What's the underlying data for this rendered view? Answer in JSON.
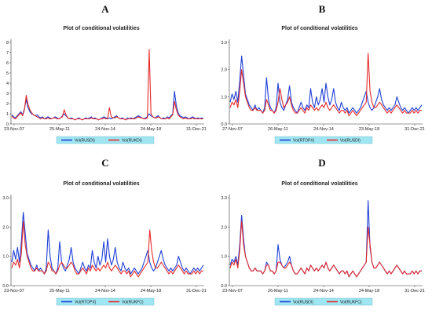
{
  "panels": [
    {
      "letter": "A"
    },
    {
      "letter": "B"
    },
    {
      "letter": "C"
    },
    {
      "letter": "D"
    }
  ],
  "colors": {
    "series1": "#1f3fd6",
    "series2": "#e52b2b",
    "legend_bg": "#9fe6f2"
  },
  "chart_data": [
    {
      "type": "line",
      "title": "Plot of conditional volatilities",
      "x_ticks": [
        "23-Nov-07",
        "25-May-11",
        "24-Nov-14",
        "24-May-18",
        "31-Dec-21"
      ],
      "y_ticks": [
        "0",
        "1",
        "2",
        "3",
        "4",
        "5",
        "6",
        "7",
        "8"
      ],
      "ylim": [
        0,
        8
      ],
      "series": [
        {
          "name": "Vol(RUSDI)",
          "color": "#1f3fd6",
          "values": [
            0.9,
            0.7,
            0.6,
            0.8,
            1.0,
            1.2,
            0.9,
            1.5,
            2.4,
            1.6,
            1.2,
            1.0,
            0.9,
            0.8,
            0.9,
            0.7,
            0.6,
            0.7,
            0.5,
            0.6,
            0.7,
            0.6,
            0.5,
            0.6,
            0.7,
            0.6,
            0.5,
            0.6,
            0.8,
            1.0,
            0.8,
            0.6,
            0.5,
            0.6,
            0.5,
            0.4,
            0.5,
            0.6,
            0.5,
            0.4,
            0.5,
            0.6,
            0.5,
            0.6,
            0.7,
            0.5,
            0.6,
            0.5,
            0.4,
            0.5,
            0.6,
            0.7,
            0.6,
            0.5,
            0.6,
            0.5,
            0.6,
            0.7,
            0.8,
            0.6,
            0.5,
            0.6,
            0.5,
            0.4,
            0.6,
            0.5,
            0.6,
            0.5,
            0.6,
            0.7,
            0.8,
            0.7,
            0.6,
            0.5,
            0.6,
            0.7,
            1.0,
            0.8,
            0.7,
            0.6,
            0.7,
            0.8,
            0.6,
            0.5,
            0.6,
            0.5,
            0.7,
            0.6,
            0.8,
            1.0,
            3.2,
            1.8,
            1.1,
            0.8,
            0.7,
            0.6,
            0.7,
            0.6,
            0.5,
            0.6,
            0.7,
            0.6,
            0.5,
            0.6,
            0.5,
            0.6,
            0.5
          ]
        },
        {
          "name": "Vol(RUKDI)",
          "color": "#e52b2b",
          "values": [
            0.8,
            0.6,
            0.5,
            0.7,
            0.9,
            1.1,
            0.8,
            1.4,
            2.8,
            1.9,
            1.4,
            1.1,
            0.9,
            0.8,
            0.7,
            0.6,
            0.5,
            0.6,
            0.5,
            0.5,
            0.6,
            0.5,
            0.5,
            0.6,
            0.6,
            0.5,
            0.5,
            0.6,
            0.7,
            1.4,
            0.9,
            0.6,
            0.5,
            0.5,
            0.5,
            0.4,
            0.5,
            0.5,
            0.5,
            0.4,
            0.5,
            0.5,
            0.5,
            0.5,
            0.6,
            0.5,
            0.5,
            0.5,
            0.4,
            0.5,
            0.5,
            0.6,
            0.5,
            0.5,
            1.6,
            0.7,
            0.6,
            0.6,
            0.7,
            0.6,
            0.5,
            0.5,
            0.5,
            0.4,
            0.5,
            0.5,
            0.5,
            0.5,
            0.5,
            0.6,
            0.7,
            0.6,
            0.6,
            0.5,
            0.5,
            0.6,
            7.3,
            1.0,
            0.7,
            0.6,
            0.6,
            0.7,
            0.6,
            0.5,
            0.5,
            0.5,
            0.6,
            0.5,
            0.7,
            0.9,
            2.2,
            1.4,
            0.9,
            0.7,
            0.6,
            0.5,
            0.6,
            0.5,
            0.5,
            0.5,
            0.6,
            0.5,
            0.5,
            0.5,
            0.5,
            0.5,
            0.5
          ]
        }
      ]
    },
    {
      "type": "line",
      "title": "Plot of conditional volatilities",
      "x_ticks": [
        "27-Nov-07",
        "26-May-11",
        "24-Nov-14",
        "23-May-18",
        "31-Dec-21"
      ],
      "y_ticks": [
        "0.0",
        "1.0",
        "2.0",
        "3.0"
      ],
      "ylim": [
        0,
        3
      ],
      "series": [
        {
          "name": "Vol(RTOPX)",
          "color": "#1f3fd6",
          "values": [
            0.8,
            1.1,
            0.9,
            1.2,
            0.8,
            1.6,
            2.5,
            1.8,
            1.1,
            0.9,
            0.7,
            0.6,
            0.5,
            0.7,
            0.5,
            0.6,
            0.5,
            0.4,
            0.6,
            1.7,
            0.9,
            0.6,
            0.5,
            0.4,
            0.6,
            1.5,
            0.8,
            0.6,
            0.5,
            0.7,
            0.9,
            1.4,
            0.8,
            0.6,
            0.5,
            0.4,
            0.6,
            0.8,
            0.6,
            0.5,
            0.7,
            0.6,
            1.3,
            0.8,
            0.6,
            1.0,
            0.7,
            0.9,
            1.3,
            0.8,
            1.5,
            1.0,
            0.7,
            0.9,
            1.3,
            0.8,
            0.6,
            0.5,
            0.8,
            0.6,
            0.5,
            0.6,
            0.4,
            0.5,
            0.6,
            0.5,
            0.4,
            0.5,
            0.6,
            0.8,
            1.0,
            1.2,
            0.8,
            0.6,
            0.5,
            0.6,
            0.8,
            1.0,
            1.3,
            0.9,
            0.7,
            0.6,
            0.5,
            0.6,
            0.5,
            0.6,
            0.7,
            1.0,
            0.8,
            0.6,
            0.5,
            0.6,
            0.5,
            0.4,
            0.5,
            0.6,
            0.5,
            0.6,
            0.5,
            0.6,
            0.7
          ]
        },
        {
          "name": "Vol(RUSDI)",
          "color": "#e52b2b",
          "values": [
            0.6,
            0.8,
            0.7,
            0.9,
            0.6,
            1.2,
            2.0,
            1.5,
            1.0,
            0.8,
            0.6,
            0.5,
            0.5,
            0.6,
            0.5,
            0.5,
            0.5,
            0.4,
            0.5,
            0.9,
            0.7,
            0.5,
            0.5,
            0.4,
            0.5,
            0.8,
            1.3,
            0.9,
            0.6,
            0.7,
            0.8,
            1.0,
            0.7,
            0.5,
            0.4,
            0.4,
            0.5,
            0.6,
            0.5,
            0.4,
            0.6,
            0.5,
            0.7,
            0.6,
            0.5,
            0.6,
            0.5,
            0.6,
            0.7,
            0.6,
            0.8,
            0.6,
            0.5,
            0.6,
            0.7,
            0.6,
            0.5,
            0.4,
            0.5,
            0.5,
            0.4,
            0.5,
            0.3,
            0.4,
            0.5,
            0.4,
            0.3,
            0.4,
            0.5,
            0.6,
            0.7,
            0.8,
            2.6,
            1.2,
            0.8,
            0.6,
            0.6,
            0.7,
            0.8,
            0.7,
            0.6,
            0.5,
            0.4,
            0.5,
            0.4,
            0.5,
            0.6,
            0.7,
            0.6,
            0.5,
            0.4,
            0.5,
            0.4,
            0.4,
            0.4,
            0.5,
            0.4,
            0.5,
            0.4,
            0.5,
            0.5
          ]
        }
      ]
    },
    {
      "type": "line",
      "title": "Plot of conditional volatilities",
      "x_ticks": [
        "23-Nov-07",
        "25-May-11",
        "24-Nov-14",
        "24-May-18",
        "31-Dec-21"
      ],
      "y_ticks": [
        "0.0",
        "1.0",
        "2.0",
        "3.0"
      ],
      "ylim": [
        0,
        3
      ],
      "series": [
        {
          "name": "Vol(RTOPX)",
          "color": "#1f3fd6",
          "values": [
            0.8,
            1.2,
            0.9,
            1.3,
            0.8,
            1.5,
            2.5,
            1.8,
            1.1,
            0.9,
            0.7,
            0.6,
            0.5,
            0.7,
            0.5,
            0.6,
            0.5,
            0.4,
            0.6,
            1.9,
            1.0,
            0.6,
            0.5,
            0.4,
            0.6,
            1.5,
            0.8,
            0.6,
            0.5,
            0.7,
            0.9,
            1.3,
            0.8,
            0.6,
            0.5,
            0.4,
            0.6,
            0.8,
            0.6,
            0.5,
            0.7,
            0.6,
            1.2,
            0.8,
            0.6,
            1.0,
            0.7,
            0.9,
            1.5,
            0.8,
            1.6,
            1.0,
            0.7,
            0.9,
            1.3,
            0.8,
            0.6,
            0.5,
            0.8,
            0.6,
            0.5,
            0.6,
            0.4,
            0.5,
            0.6,
            0.5,
            0.4,
            0.5,
            0.6,
            0.8,
            1.0,
            1.2,
            0.8,
            0.6,
            0.5,
            0.6,
            0.8,
            1.0,
            1.2,
            0.9,
            0.7,
            0.6,
            0.5,
            0.6,
            0.5,
            0.6,
            0.7,
            1.0,
            0.8,
            0.6,
            0.5,
            0.6,
            0.5,
            0.4,
            0.5,
            0.6,
            0.5,
            0.6,
            0.5,
            0.6,
            0.7
          ]
        },
        {
          "name": "Vol(RUKFC)",
          "color": "#e52b2b",
          "values": [
            0.6,
            0.8,
            0.7,
            0.9,
            0.6,
            1.1,
            2.2,
            1.4,
            1.0,
            0.8,
            0.6,
            0.5,
            0.5,
            0.6,
            0.5,
            0.5,
            0.5,
            0.4,
            0.5,
            0.8,
            0.7,
            0.5,
            0.5,
            0.4,
            0.5,
            0.7,
            0.8,
            0.7,
            0.6,
            0.6,
            0.7,
            0.8,
            0.7,
            0.5,
            0.4,
            0.4,
            0.5,
            0.6,
            0.5,
            0.4,
            0.6,
            0.5,
            0.7,
            0.6,
            0.5,
            0.6,
            0.5,
            0.6,
            0.7,
            0.6,
            0.8,
            0.6,
            0.5,
            0.6,
            0.7,
            0.6,
            0.5,
            0.4,
            0.5,
            0.5,
            0.4,
            0.5,
            0.3,
            0.4,
            0.5,
            0.4,
            0.3,
            0.4,
            0.5,
            0.6,
            0.7,
            0.8,
            1.9,
            1.2,
            0.8,
            0.6,
            0.6,
            0.7,
            0.8,
            0.7,
            0.6,
            0.5,
            0.4,
            0.5,
            0.4,
            0.5,
            0.6,
            0.7,
            0.6,
            0.5,
            0.4,
            0.5,
            0.4,
            0.4,
            0.4,
            0.5,
            0.4,
            0.5,
            0.4,
            0.5,
            0.5
          ]
        }
      ]
    },
    {
      "type": "line",
      "title": "Plot of conditional volatilities",
      "x_ticks": [
        "23-Nov-07",
        "26-May-11",
        "24-Nov-14",
        "24-May-18",
        "31-Dec-21"
      ],
      "y_ticks": [
        "0.0",
        "1.0",
        "2.0",
        "3.0"
      ],
      "ylim": [
        0,
        3
      ],
      "series": [
        {
          "name": "Vol(RUSDI)",
          "color": "#1f3fd6",
          "values": [
            0.7,
            0.9,
            0.8,
            1.0,
            0.7,
            1.4,
            2.4,
            1.6,
            1.0,
            0.8,
            0.6,
            0.5,
            0.5,
            0.6,
            0.5,
            0.5,
            0.5,
            0.4,
            0.5,
            0.8,
            0.7,
            0.5,
            0.5,
            0.4,
            0.5,
            1.4,
            0.9,
            0.7,
            0.6,
            0.7,
            0.8,
            1.0,
            0.7,
            0.5,
            0.4,
            0.4,
            0.5,
            0.6,
            0.5,
            0.4,
            0.6,
            0.5,
            0.7,
            0.6,
            0.5,
            0.6,
            0.5,
            0.6,
            0.7,
            0.6,
            0.8,
            0.6,
            0.5,
            0.6,
            0.7,
            0.6,
            0.5,
            0.4,
            0.5,
            0.5,
            0.4,
            0.5,
            0.3,
            0.4,
            0.5,
            0.4,
            0.3,
            0.4,
            0.5,
            0.6,
            0.7,
            0.8,
            2.9,
            1.3,
            0.8,
            0.6,
            0.6,
            0.7,
            0.8,
            0.7,
            0.6,
            0.5,
            0.4,
            0.5,
            0.4,
            0.5,
            0.6,
            0.7,
            0.6,
            0.5,
            0.4,
            0.5,
            0.4,
            0.4,
            0.4,
            0.5,
            0.4,
            0.5,
            0.4,
            0.5,
            0.5
          ]
        },
        {
          "name": "Vol(RUKFC)",
          "color": "#e52b2b",
          "values": [
            0.6,
            0.8,
            0.7,
            0.9,
            0.6,
            1.2,
            2.2,
            1.4,
            1.0,
            0.8,
            0.6,
            0.5,
            0.5,
            0.6,
            0.5,
            0.5,
            0.5,
            0.4,
            0.5,
            0.7,
            0.7,
            0.5,
            0.5,
            0.4,
            0.5,
            0.8,
            0.8,
            0.7,
            0.6,
            0.6,
            0.7,
            0.8,
            0.7,
            0.5,
            0.4,
            0.4,
            0.5,
            0.6,
            0.5,
            0.4,
            0.6,
            0.5,
            0.7,
            0.6,
            0.5,
            0.6,
            0.5,
            0.6,
            0.7,
            0.6,
            0.8,
            0.6,
            0.5,
            0.6,
            0.7,
            0.6,
            0.5,
            0.4,
            0.5,
            0.5,
            0.4,
            0.5,
            0.3,
            0.4,
            0.5,
            0.4,
            0.3,
            0.4,
            0.5,
            0.6,
            0.7,
            0.8,
            2.0,
            1.4,
            0.8,
            0.6,
            0.6,
            0.7,
            0.8,
            0.7,
            0.6,
            0.5,
            0.4,
            0.5,
            0.4,
            0.5,
            0.6,
            0.7,
            0.6,
            0.5,
            0.4,
            0.5,
            0.4,
            0.4,
            0.4,
            0.5,
            0.4,
            0.5,
            0.4,
            0.5,
            0.5
          ]
        }
      ]
    }
  ]
}
